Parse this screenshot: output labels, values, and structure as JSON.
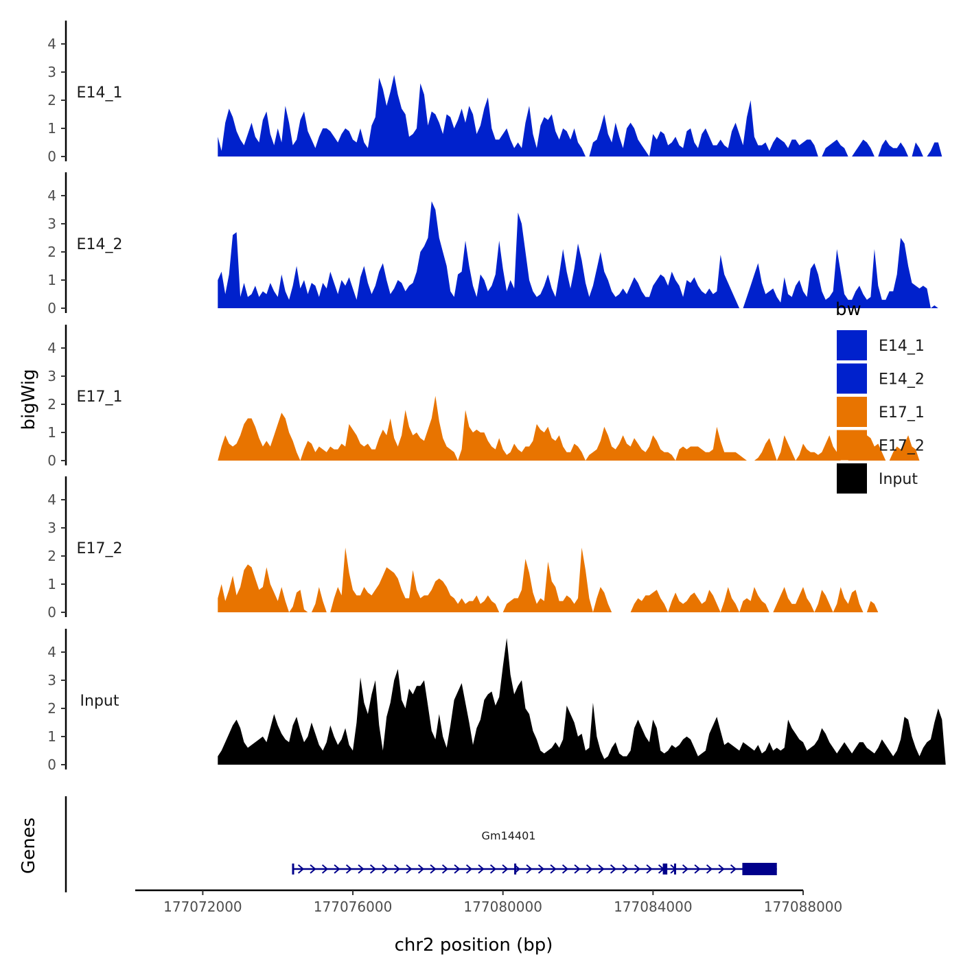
{
  "chart_data": {
    "type": "area",
    "xlabel": "chr2 position (bp)",
    "ylabel": "bigWig",
    "genes_label": "Genes",
    "xlim": [
      177070200,
      177088000
    ],
    "ylim": [
      0,
      4.7
    ],
    "x_ticks": [
      177072000,
      177076000,
      177080000,
      177084000,
      177088000
    ],
    "x_tick_labels": [
      "177072000",
      "177076000",
      "177080000",
      "177084000",
      "177088000"
    ],
    "y_ticks": [
      0,
      1,
      2,
      3,
      4
    ],
    "y_tick_labels": [
      "0",
      "1",
      "2",
      "3",
      "4"
    ],
    "legend": {
      "title": "bw",
      "placement": "right",
      "entries": [
        "E14_1",
        "E14_2",
        "E17_1",
        "E17_2",
        "Input"
      ]
    },
    "colors": {
      "E14_1": "#0021cc",
      "E14_2": "#0021cc",
      "E17_1": "#e87400",
      "E17_2": "#e87400",
      "Input": "#000000",
      "gene": "#00008b"
    },
    "x_start": 177072400,
    "x_step": 100,
    "series": [
      {
        "name": "E14_1",
        "values": [
          0.7,
          0.2,
          1.2,
          1.7,
          1.4,
          0.9,
          0.6,
          0.4,
          0.8,
          1.2,
          0.7,
          0.5,
          1.3,
          1.6,
          0.8,
          0.4,
          1.0,
          0.5,
          1.8,
          1.2,
          0.4,
          0.6,
          1.3,
          1.6,
          0.9,
          0.6,
          0.3,
          0.7,
          1.0,
          1.0,
          0.9,
          0.7,
          0.5,
          0.8,
          1.0,
          0.9,
          0.6,
          0.5,
          1.0,
          0.5,
          0.3,
          1.1,
          1.4,
          2.8,
          2.4,
          1.8,
          2.3,
          2.9,
          2.2,
          1.7,
          1.5,
          0.7,
          0.8,
          1.0,
          2.6,
          2.2,
          1.1,
          1.6,
          1.5,
          1.2,
          0.8,
          1.5,
          1.4,
          1.0,
          1.3,
          1.7,
          1.2,
          1.8,
          1.5,
          0.8,
          1.1,
          1.7,
          2.1,
          1.0,
          0.6,
          0.6,
          0.8,
          1.0,
          0.6,
          0.3,
          0.5,
          0.3,
          1.2,
          1.8,
          0.8,
          0.3,
          1.1,
          1.4,
          1.3,
          1.5,
          0.9,
          0.6,
          1.0,
          0.9,
          0.6,
          1.0,
          0.5,
          0.3,
          0.0,
          0.0,
          0.5,
          0.6,
          1.0,
          1.5,
          0.8,
          0.5,
          1.2,
          0.7,
          0.3,
          1.0,
          1.2,
          1.0,
          0.6,
          0.4,
          0.2,
          0.0,
          0.8,
          0.6,
          0.9,
          0.8,
          0.4,
          0.5,
          0.7,
          0.4,
          0.3,
          0.9,
          1.0,
          0.5,
          0.3,
          0.8,
          1.0,
          0.7,
          0.4,
          0.4,
          0.6,
          0.4,
          0.3,
          0.9,
          1.2,
          0.8,
          0.4,
          1.4,
          2.0,
          0.7,
          0.4,
          0.4,
          0.5,
          0.2,
          0.5,
          0.7,
          0.6,
          0.5,
          0.3,
          0.6,
          0.6,
          0.4,
          0.5,
          0.6,
          0.6,
          0.4,
          0.0,
          0.0,
          0.3,
          0.4,
          0.5,
          0.6,
          0.4,
          0.3,
          0.0,
          0.0,
          0.2,
          0.4,
          0.6,
          0.5,
          0.3,
          0.0,
          0.0,
          0.4,
          0.6,
          0.4,
          0.3,
          0.3,
          0.5,
          0.3,
          0.0,
          0.0,
          0.5,
          0.3,
          0.0,
          0.0,
          0.2,
          0.5,
          0.5,
          0.0,
          0.0,
          0.0,
          0.0,
          0.0,
          0.0,
          0.0,
          0.0,
          0.0,
          0.0,
          0.0,
          0.0,
          0.0,
          0.0,
          0.0,
          0.0,
          0.0,
          0.0,
          0.0,
          0.0,
          0.0,
          0.0,
          0.0,
          0.0,
          0.0,
          0.0,
          0.0,
          0.0,
          0.0,
          0.0
        ]
      },
      {
        "name": "E14_2",
        "values": [
          1.0,
          1.3,
          0.5,
          1.2,
          2.6,
          2.7,
          0.4,
          0.9,
          0.4,
          0.5,
          0.8,
          0.4,
          0.6,
          0.5,
          0.9,
          0.6,
          0.4,
          1.2,
          0.6,
          0.3,
          0.8,
          1.5,
          0.7,
          1.0,
          0.5,
          0.9,
          0.8,
          0.4,
          0.9,
          0.7,
          1.3,
          0.9,
          0.5,
          1.0,
          0.8,
          1.1,
          0.7,
          0.3,
          1.1,
          1.5,
          0.9,
          0.5,
          0.8,
          1.3,
          1.6,
          1.0,
          0.5,
          0.7,
          1.0,
          0.9,
          0.6,
          0.8,
          0.9,
          1.3,
          2.0,
          2.2,
          2.5,
          3.8,
          3.5,
          2.5,
          2.0,
          1.5,
          0.6,
          0.4,
          1.2,
          1.3,
          2.4,
          1.5,
          0.8,
          0.4,
          1.2,
          1.0,
          0.6,
          0.8,
          1.2,
          2.4,
          1.4,
          0.6,
          1.0,
          0.7,
          3.4,
          3.0,
          2.0,
          1.0,
          0.6,
          0.4,
          0.5,
          0.8,
          1.2,
          0.7,
          0.4,
          1.2,
          2.1,
          1.3,
          0.7,
          1.4,
          2.3,
          1.7,
          0.9,
          0.4,
          0.8,
          1.4,
          2.0,
          1.3,
          1.0,
          0.6,
          0.4,
          0.5,
          0.7,
          0.5,
          0.8,
          1.1,
          0.9,
          0.6,
          0.4,
          0.4,
          0.8,
          1.0,
          1.2,
          1.1,
          0.8,
          1.3,
          1.0,
          0.8,
          0.4,
          1.0,
          0.9,
          1.1,
          0.8,
          0.6,
          0.5,
          0.7,
          0.5,
          0.6,
          1.9,
          1.2,
          0.9,
          0.6,
          0.3,
          0.0,
          0.0,
          0.4,
          0.8,
          1.2,
          1.6,
          0.9,
          0.5,
          0.6,
          0.7,
          0.4,
          0.2,
          1.1,
          0.5,
          0.4,
          0.8,
          1.0,
          0.6,
          0.4,
          1.4,
          1.6,
          1.2,
          0.6,
          0.3,
          0.4,
          0.6,
          2.1,
          1.3,
          0.5,
          0.3,
          0.3,
          0.6,
          0.8,
          0.5,
          0.3,
          0.4,
          2.1,
          0.8,
          0.3,
          0.3,
          0.6,
          0.6,
          1.2,
          2.5,
          2.3,
          1.5,
          0.9,
          0.8,
          0.7,
          0.8,
          0.7,
          0.0,
          0.1,
          0.0,
          0.0,
          0.0,
          0.0,
          0.0,
          0.0,
          0.0,
          0.0,
          0.0,
          0.0,
          0.0,
          0.0,
          0.0,
          0.0,
          0.0,
          0.0,
          0.0,
          0.0,
          0.0,
          0.0,
          0.0,
          0.0,
          0.0,
          0.0,
          0.0,
          0.0,
          0.0,
          0.0,
          0.0,
          0.0
        ]
      },
      {
        "name": "E17_1",
        "values": [
          0.0,
          0.5,
          0.9,
          0.6,
          0.5,
          0.6,
          0.9,
          1.3,
          1.5,
          1.5,
          1.2,
          0.8,
          0.5,
          0.7,
          0.5,
          0.9,
          1.3,
          1.7,
          1.5,
          1.0,
          0.7,
          0.3,
          0.0,
          0.4,
          0.7,
          0.6,
          0.3,
          0.5,
          0.4,
          0.3,
          0.5,
          0.4,
          0.4,
          0.6,
          0.5,
          1.3,
          1.1,
          0.9,
          0.6,
          0.5,
          0.6,
          0.4,
          0.4,
          0.8,
          1.1,
          0.9,
          1.5,
          0.8,
          0.5,
          0.9,
          1.8,
          1.2,
          0.9,
          1.0,
          0.8,
          0.7,
          1.1,
          1.5,
          2.3,
          1.4,
          0.8,
          0.5,
          0.4,
          0.3,
          0.0,
          0.4,
          1.8,
          1.2,
          1.0,
          1.1,
          1.0,
          1.0,
          0.7,
          0.5,
          0.4,
          0.8,
          0.4,
          0.2,
          0.3,
          0.6,
          0.4,
          0.3,
          0.5,
          0.5,
          0.7,
          1.3,
          1.1,
          1.0,
          1.2,
          0.8,
          0.7,
          0.9,
          0.5,
          0.3,
          0.3,
          0.6,
          0.5,
          0.3,
          0.0,
          0.2,
          0.3,
          0.4,
          0.7,
          1.2,
          0.9,
          0.5,
          0.4,
          0.6,
          0.9,
          0.6,
          0.5,
          0.8,
          0.6,
          0.4,
          0.3,
          0.5,
          0.9,
          0.7,
          0.4,
          0.3,
          0.3,
          0.2,
          0.0,
          0.4,
          0.5,
          0.4,
          0.5,
          0.5,
          0.5,
          0.4,
          0.3,
          0.3,
          0.4,
          1.2,
          0.7,
          0.3,
          0.3,
          0.3,
          0.3,
          0.2,
          0.1,
          0.0,
          0.0,
          0.0,
          0.1,
          0.3,
          0.6,
          0.8,
          0.4,
          0.0,
          0.3,
          0.9,
          0.6,
          0.3,
          0.0,
          0.2,
          0.6,
          0.4,
          0.3,
          0.3,
          0.2,
          0.3,
          0.6,
          0.9,
          0.5,
          0.3,
          0.0,
          0.0,
          0.0,
          0.2,
          0.5,
          0.4,
          0.3,
          0.9,
          0.8,
          0.5,
          0.6,
          0.3,
          0.0,
          0.0,
          0.3,
          0.5,
          0.4,
          0.6,
          0.9,
          0.5,
          0.4,
          0.0,
          0.0,
          0.0,
          0.0,
          0.0,
          0.0,
          0.0,
          0.0,
          0.0,
          0.0,
          0.0,
          0.0,
          0.0,
          0.0,
          0.0,
          0.0,
          0.0,
          0.0,
          0.0,
          0.0,
          0.0,
          0.0,
          0.0,
          0.0,
          0.0,
          0.0,
          0.0,
          0.0,
          0.0,
          0.0
        ]
      },
      {
        "name": "E17_2",
        "values": [
          0.5,
          1.0,
          0.4,
          0.8,
          1.3,
          0.6,
          0.9,
          1.5,
          1.7,
          1.6,
          1.2,
          0.8,
          0.9,
          1.6,
          1.0,
          0.7,
          0.4,
          0.9,
          0.4,
          0.0,
          0.2,
          0.7,
          0.8,
          0.1,
          0.0,
          0.0,
          0.3,
          0.9,
          0.4,
          0.0,
          0.0,
          0.5,
          0.9,
          0.6,
          2.3,
          1.4,
          0.8,
          0.6,
          0.6,
          0.9,
          0.7,
          0.6,
          0.8,
          1.0,
          1.3,
          1.6,
          1.5,
          1.4,
          1.2,
          0.8,
          0.5,
          0.5,
          1.5,
          0.8,
          0.5,
          0.6,
          0.6,
          0.8,
          1.1,
          1.2,
          1.1,
          0.9,
          0.6,
          0.5,
          0.3,
          0.5,
          0.3,
          0.4,
          0.4,
          0.6,
          0.3,
          0.4,
          0.6,
          0.4,
          0.3,
          0.0,
          0.0,
          0.3,
          0.4,
          0.5,
          0.5,
          0.8,
          1.9,
          1.4,
          0.7,
          0.3,
          0.5,
          0.4,
          1.8,
          1.1,
          0.9,
          0.4,
          0.4,
          0.6,
          0.5,
          0.3,
          0.5,
          2.3,
          1.5,
          0.5,
          0.0,
          0.5,
          0.9,
          0.7,
          0.3,
          0.0,
          0.0,
          0.0,
          0.0,
          0.0,
          0.0,
          0.3,
          0.5,
          0.4,
          0.6,
          0.6,
          0.7,
          0.8,
          0.5,
          0.3,
          0.0,
          0.4,
          0.7,
          0.4,
          0.3,
          0.4,
          0.6,
          0.7,
          0.5,
          0.3,
          0.4,
          0.8,
          0.6,
          0.3,
          0.0,
          0.4,
          0.9,
          0.5,
          0.3,
          0.0,
          0.4,
          0.5,
          0.4,
          0.9,
          0.6,
          0.4,
          0.3,
          0.0,
          0.0,
          0.3,
          0.6,
          0.9,
          0.5,
          0.3,
          0.3,
          0.6,
          0.9,
          0.5,
          0.3,
          0.0,
          0.3,
          0.8,
          0.6,
          0.3,
          0.0,
          0.3,
          0.9,
          0.5,
          0.3,
          0.7,
          0.8,
          0.3,
          0.0,
          0.0,
          0.4,
          0.3,
          0.0,
          0.0,
          0.0,
          0.0,
          0.0,
          0.0,
          0.0,
          0.0,
          0.0,
          0.0,
          0.0,
          0.0,
          0.0,
          0.0,
          0.0,
          0.0,
          0.0,
          0.0,
          0.0,
          0.0,
          0.0,
          0.0,
          0.0,
          0.0,
          0.0,
          0.0,
          0.0,
          0.0,
          0.0,
          0.0,
          0.0,
          0.0,
          0.0,
          0.0,
          0.0,
          0.0,
          0.0,
          0.0,
          0.0,
          0.0
        ]
      },
      {
        "name": "Input",
        "values": [
          0.3,
          0.5,
          0.8,
          1.1,
          1.4,
          1.6,
          1.3,
          0.8,
          0.6,
          0.7,
          0.8,
          0.9,
          1.0,
          0.8,
          1.3,
          1.8,
          1.4,
          1.1,
          0.9,
          0.8,
          1.4,
          1.7,
          1.2,
          0.8,
          1.0,
          1.5,
          1.1,
          0.7,
          0.5,
          0.8,
          1.4,
          1.0,
          0.7,
          0.9,
          1.3,
          0.7,
          0.5,
          1.5,
          3.1,
          2.2,
          1.8,
          2.5,
          3.0,
          1.4,
          0.5,
          1.7,
          2.2,
          3.0,
          3.4,
          2.3,
          2.0,
          2.7,
          2.5,
          2.8,
          2.8,
          3.0,
          2.1,
          1.2,
          0.9,
          1.8,
          1.0,
          0.6,
          1.4,
          2.3,
          2.6,
          2.9,
          2.2,
          1.5,
          0.7,
          1.3,
          1.6,
          2.3,
          2.5,
          2.6,
          2.1,
          2.4,
          3.5,
          4.5,
          3.2,
          2.5,
          2.8,
          3.0,
          2.0,
          1.8,
          1.2,
          0.9,
          0.5,
          0.4,
          0.5,
          0.6,
          0.8,
          0.6,
          0.9,
          2.1,
          1.8,
          1.5,
          1.0,
          1.1,
          0.5,
          0.6,
          2.2,
          1.0,
          0.5,
          0.2,
          0.3,
          0.6,
          0.8,
          0.4,
          0.3,
          0.3,
          0.5,
          1.3,
          1.6,
          1.3,
          1.0,
          0.8,
          1.6,
          1.3,
          0.5,
          0.4,
          0.5,
          0.7,
          0.6,
          0.7,
          0.9,
          1.0,
          0.9,
          0.6,
          0.3,
          0.4,
          0.5,
          1.1,
          1.4,
          1.7,
          1.2,
          0.7,
          0.8,
          0.7,
          0.6,
          0.5,
          0.8,
          0.7,
          0.6,
          0.5,
          0.7,
          0.4,
          0.5,
          0.8,
          0.5,
          0.6,
          0.5,
          0.6,
          1.6,
          1.3,
          1.1,
          0.9,
          0.8,
          0.5,
          0.6,
          0.7,
          0.9,
          1.3,
          1.1,
          0.8,
          0.6,
          0.4,
          0.6,
          0.8,
          0.6,
          0.4,
          0.6,
          0.8,
          0.8,
          0.6,
          0.5,
          0.4,
          0.6,
          0.9,
          0.7,
          0.5,
          0.3,
          0.5,
          0.9,
          1.7,
          1.6,
          1.0,
          0.6,
          0.3,
          0.6,
          0.8,
          0.9,
          1.5,
          2.0,
          1.6,
          0.0,
          0.0,
          0.0,
          0.0,
          0.0,
          0.0,
          0.0,
          0.0,
          0.0,
          0.0,
          0.0,
          0.0,
          0.0,
          0.0,
          0.0,
          0.0,
          0.0,
          0.0,
          0.0,
          0.0,
          0.0,
          0.0,
          0.0
        ]
      }
    ],
    "gene": {
      "name": "Gm14401",
      "start": 177074400,
      "end": 177087300,
      "strand": "+",
      "exons": [
        [
          177074380,
          177074420
        ],
        [
          177080300,
          177080340
        ],
        [
          177084260,
          177084380
        ],
        [
          177084560,
          177084600
        ],
        [
          177086380,
          177087300
        ]
      ]
    }
  }
}
